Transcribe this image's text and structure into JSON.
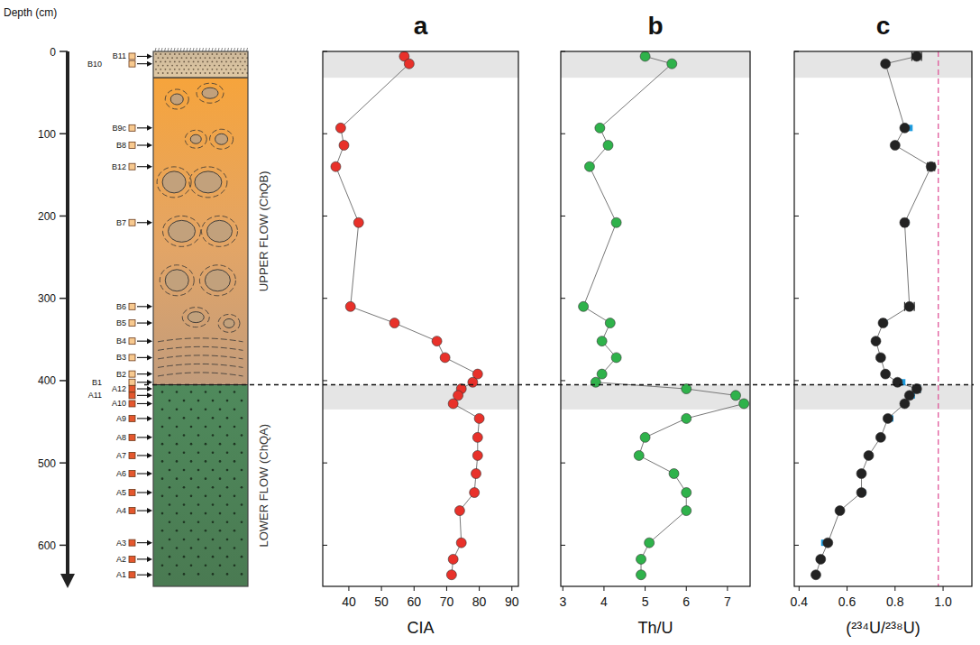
{
  "depth_axis": {
    "title": "Depth (cm)",
    "lim": [
      0,
      650
    ],
    "ticks": [
      0,
      100,
      200,
      300,
      400,
      500,
      600
    ]
  },
  "contact_depth": 405,
  "column": {
    "layers": [
      {
        "top": 0,
        "bottom": 32
      },
      {
        "label": "UPPER FLOW (ChQB)",
        "top": 32,
        "bottom": 405
      },
      {
        "label": "LOWER FLOW (ChQA)",
        "top": 405,
        "bottom": 650
      }
    ],
    "samples": {
      "labels": [
        "B11",
        "B10",
        "B9c",
        "B8",
        "B12",
        "B7",
        "B6",
        "B5",
        "B4",
        "B3",
        "B2",
        "B1",
        "A12",
        "A11",
        "A10",
        "A9",
        "A8",
        "A7",
        "A6",
        "A5",
        "A4",
        "A3",
        "A2",
        "A1"
      ],
      "depth": [
        6,
        15,
        93,
        114,
        140,
        208,
        310,
        330,
        352,
        372,
        392,
        402,
        410,
        418,
        428,
        446,
        469,
        491,
        513,
        536,
        558,
        597,
        617,
        636
      ]
    }
  },
  "chart_data": [
    {
      "type": "line",
      "title": "a",
      "xlabel": "CIA",
      "xlim": [
        32,
        92
      ],
      "xticks": [
        40,
        50,
        60,
        70,
        80,
        90
      ],
      "ylim": [
        0,
        650
      ],
      "yticks": [
        0,
        100,
        200,
        300,
        400,
        500,
        600
      ],
      "tick_labels": "x",
      "bands": [
        [
          0,
          32
        ],
        [
          405,
          435
        ]
      ],
      "series": [
        {
          "color": "#e8312a",
          "marker": "circle",
          "line_style": "solid",
          "values": [
            57,
            58.5,
            37.5,
            38.5,
            36,
            43,
            40.5,
            54,
            67,
            69.5,
            79.5,
            78,
            74.5,
            73.5,
            72,
            80,
            79.5,
            79.5,
            79,
            78.5,
            74,
            74.5,
            72,
            71.5
          ],
          "depth": [
            6,
            15,
            93,
            114,
            140,
            208,
            310,
            330,
            352,
            372,
            392,
            402,
            410,
            418,
            428,
            446,
            469,
            491,
            513,
            536,
            558,
            597,
            617,
            636
          ]
        }
      ]
    },
    {
      "type": "line",
      "title": "b",
      "xlabel": "Th/U",
      "xlim": [
        2.95,
        7.55
      ],
      "xticks": [
        3,
        4,
        5,
        6,
        7
      ],
      "ylim": [
        0,
        650
      ],
      "yticks": [
        0,
        100,
        200,
        300,
        400,
        500,
        600
      ],
      "tick_labels": "x",
      "bands": [
        [
          0,
          32
        ],
        [
          405,
          435
        ]
      ],
      "series": [
        {
          "color": "#2fb24b",
          "marker": "circle",
          "line_style": "solid",
          "values": [
            5.0,
            5.65,
            3.9,
            4.1,
            3.65,
            4.3,
            3.5,
            4.15,
            3.95,
            4.3,
            3.95,
            3.8,
            6.0,
            7.2,
            7.4,
            6.0,
            5.0,
            4.85,
            5.7,
            6.0,
            6.0,
            5.1,
            4.9,
            4.9
          ],
          "depth": [
            6,
            15,
            93,
            114,
            140,
            208,
            310,
            330,
            352,
            372,
            392,
            402,
            410,
            418,
            428,
            446,
            469,
            491,
            513,
            536,
            558,
            597,
            617,
            636
          ]
        }
      ]
    },
    {
      "type": "line",
      "title": "c",
      "xlabel": "(²³⁴U/²³⁸U)",
      "xlim": [
        0.38,
        1.12
      ],
      "xticks": [
        0.4,
        0.6,
        0.8,
        {
          "value": 1.0,
          "label": "1.0"
        }
      ],
      "ylim": [
        0,
        650
      ],
      "yticks": [
        0,
        100,
        200,
        300,
        400,
        500,
        600
      ],
      "tick_labels": "x",
      "bands": [
        [
          0,
          32
        ],
        [
          405,
          435
        ]
      ],
      "reference_line": {
        "value": 0.98,
        "color": "#e0579a"
      },
      "series": [
        {
          "color": "#222222",
          "marker": "circle",
          "line_style": "solid",
          "values": [
            0.89,
            0.76,
            0.84,
            0.8,
            0.95,
            0.84,
            0.86,
            0.75,
            0.72,
            0.74,
            0.76,
            0.81,
            0.89,
            0.86,
            0.84,
            0.77,
            0.74,
            0.69,
            0.66,
            0.66,
            0.57,
            0.52,
            0.49,
            0.47
          ],
          "depth": [
            6,
            15,
            93,
            114,
            140,
            208,
            310,
            330,
            352,
            372,
            392,
            402,
            410,
            418,
            428,
            446,
            469,
            491,
            513,
            536,
            558,
            597,
            617,
            636
          ],
          "error": [
            0.02,
            null,
            null,
            null,
            0.015,
            0.01,
            0.02,
            0.01,
            null,
            null,
            null,
            null,
            0.015,
            null,
            null,
            null,
            null,
            null,
            null,
            null,
            null,
            null,
            null,
            null
          ]
        },
        {
          "color": "#1e9de0",
          "marker": "square",
          "line_style": "none",
          "values": [
            0.86,
            0.845,
            0.755,
            0.83,
            0.895,
            0.87,
            0.78,
            0.665,
            0.505,
            0.47
          ],
          "depth": [
            93,
            208,
            330,
            402,
            410,
            418,
            446,
            536,
            597,
            636
          ]
        }
      ]
    }
  ]
}
